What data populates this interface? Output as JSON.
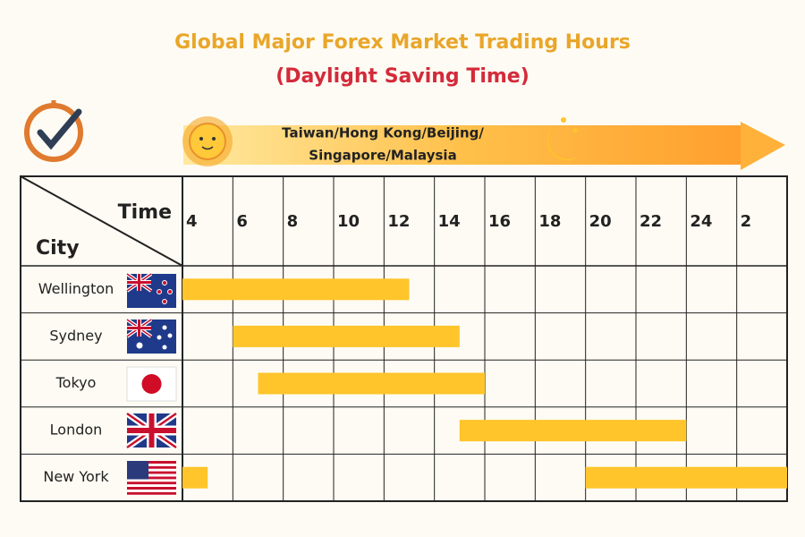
{
  "chart_data": {
    "type": "range-bar",
    "title": "Global Major Forex Market Trading Hours",
    "subtitle": "(Daylight Saving Time)",
    "banner": [
      "Taiwan/Hong Kong/Beijing/",
      "Singapore/Malaysia"
    ],
    "x_header": "Time",
    "y_header": "City",
    "categories": [
      "Wellington",
      "Sydney",
      "Tokyo",
      "London",
      "New York"
    ],
    "values": [
      [
        [
          4,
          13
        ]
      ],
      [
        [
          6,
          15
        ]
      ],
      [
        [
          7,
          16
        ]
      ],
      [
        [
          15,
          24
        ]
      ],
      [
        [
          20,
          28
        ],
        [
          4,
          5
        ]
      ]
    ],
    "color": "#FFC52B",
    "xlim": [
      4,
      28
    ],
    "xticks": [
      4,
      6,
      8,
      10,
      12,
      14,
      16,
      18,
      20,
      22,
      24,
      {
        "value": 26,
        "label": "2"
      }
    ],
    "grid": true
  }
}
